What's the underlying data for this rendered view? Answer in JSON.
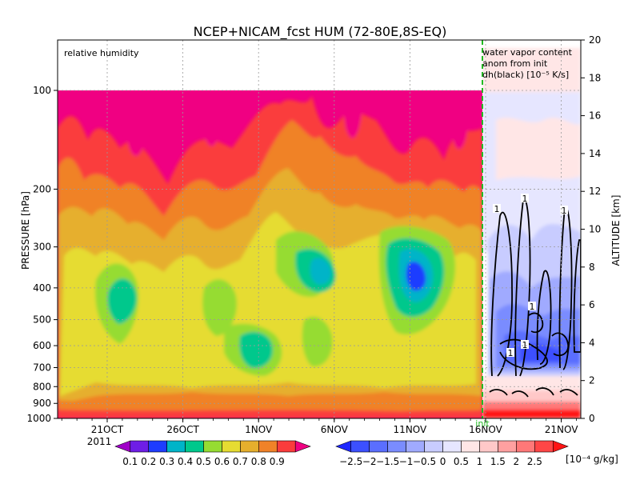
{
  "chart_data": {
    "type": "heatmap",
    "title": "NCEP+NICAM_fcst HUM (72-80E,8S-EQ)",
    "left_panel_label": "relative humidity",
    "right_panel_label_lines": [
      "water vapor content",
      "anom from init",
      "dh(black) [10⁻⁵ K/s]"
    ],
    "ylabel_left": "PRESSURE [hPa]",
    "ylabel_right": "ALTITUDE [km]",
    "pressure_ticks": [
      "100",
      "200",
      "300",
      "400",
      "500",
      "600",
      "700",
      "800",
      "900",
      "1000"
    ],
    "pressure_values": [
      100,
      200,
      300,
      400,
      500,
      600,
      700,
      800,
      900,
      1000
    ],
    "ylim_pressure": [
      1000,
      100
    ],
    "altitude_ticks": [
      "0",
      "2",
      "4",
      "6",
      "8",
      "10",
      "12",
      "14",
      "16",
      "18",
      "20"
    ],
    "altitude_values": [
      0,
      2,
      4,
      6,
      8,
      10,
      12,
      14,
      16,
      18,
      20
    ],
    "ylim_altitude": [
      0,
      20
    ],
    "x_ticks": [
      "21OCT",
      "26OCT",
      "1NOV",
      "6NOV",
      "11NOV",
      "16NOV",
      "21NOV"
    ],
    "x_year_label": "2011",
    "init_label": "init",
    "contour_labels": [
      "1",
      "1",
      "1",
      "1",
      "1",
      "1"
    ],
    "rh_colorbar": {
      "labels": [
        "0.1",
        "0.2",
        "0.3",
        "0.4",
        "0.5",
        "0.6",
        "0.7",
        "0.8",
        "0.9"
      ],
      "colors": [
        "#a000c8",
        "#6e1ee6",
        "#1e3cff",
        "#00b4c8",
        "#00c88c",
        "#96dc32",
        "#e6dc32",
        "#e6af2d",
        "#f08228",
        "#fa3c3c",
        "#f00082"
      ]
    },
    "anom_colorbar": {
      "labels": [
        "−2.5",
        "−2",
        "−1.5",
        "−1",
        "−0.5",
        "0",
        "0.5",
        "1",
        "1.5",
        "2",
        "2.5"
      ],
      "unit": "[10⁻⁴ g/kg]",
      "colors": [
        "#1e28ff",
        "#3c50ff",
        "#5a6eff",
        "#7a8cff",
        "#a0aaff",
        "#c8ccff",
        "#e6e6ff",
        "#ffe6e6",
        "#ffc8c8",
        "#ffa0a0",
        "#ff7878",
        "#ff4646",
        "#ff1414"
      ]
    }
  }
}
